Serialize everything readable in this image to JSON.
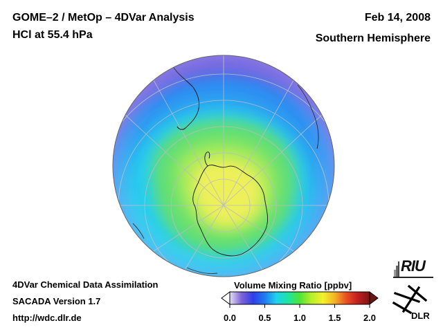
{
  "header": {
    "title_line1": "GOME–2 / MetOp – 4DVar Analysis",
    "title_line2": "HCl at 55.4 hPa",
    "date": "Feb 14, 2008",
    "region": "Southern Hemisphere"
  },
  "footer": {
    "info_line1": "4DVar Chemical Data Assimilation",
    "info_line2": "SACADA Version 1.7",
    "info_line3": "http://wdc.dlr.de"
  },
  "colorbar": {
    "title": "Volume Mixing Ratio [ppbv]",
    "ticks": [
      "0.0",
      "0.5",
      "1.0",
      "1.5",
      "2.0"
    ],
    "stops": [
      "#e4e0f2",
      "#7d64d8",
      "#2f3ee8",
      "#1f7cf0",
      "#1fd2ee",
      "#1ee5a0",
      "#4ee338",
      "#b8ee2a",
      "#f4f02c",
      "#f3b327",
      "#ea4f22",
      "#bf1e1e",
      "#7d1616"
    ]
  },
  "map": {
    "colors": {
      "outer": "#6b58dc",
      "blue": "#2f8df2",
      "cyan": "#28cfee",
      "green": "#63df72",
      "lightgreen": "#a4ea5a",
      "yellow": "#eef05a"
    }
  },
  "logos": {
    "riu": "RIU",
    "dlr": "DLR"
  }
}
